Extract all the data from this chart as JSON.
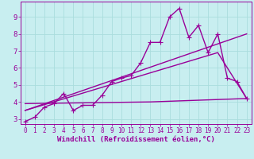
{
  "xlabel": "Windchill (Refroidissement éolien,°C)",
  "bg_color": "#c8eef0",
  "grid_color": "#aadddd",
  "line_color": "#990099",
  "xlim": [
    -0.5,
    23.5
  ],
  "ylim": [
    2.7,
    9.9
  ],
  "yticks": [
    3,
    4,
    5,
    6,
    7,
    8,
    9
  ],
  "xticks": [
    0,
    1,
    2,
    3,
    4,
    5,
    6,
    7,
    8,
    9,
    10,
    11,
    12,
    13,
    14,
    15,
    16,
    17,
    18,
    19,
    20,
    21,
    22,
    23
  ],
  "data_x": [
    0,
    1,
    2,
    3,
    4,
    5,
    6,
    7,
    8,
    9,
    10,
    11,
    12,
    13,
    14,
    15,
    16,
    17,
    18,
    19,
    20,
    21,
    22,
    23
  ],
  "data_y": [
    2.85,
    3.1,
    3.7,
    3.9,
    4.5,
    3.5,
    3.8,
    3.8,
    4.4,
    5.2,
    5.4,
    5.55,
    6.3,
    7.5,
    7.5,
    9.0,
    9.5,
    7.8,
    8.5,
    6.9,
    8.0,
    5.4,
    5.2,
    4.2
  ],
  "trend1_x": [
    0,
    20,
    23
  ],
  "trend1_y": [
    3.5,
    6.9,
    4.2
  ],
  "trend2_x": [
    0,
    23
  ],
  "trend2_y": [
    3.5,
    8.0
  ],
  "trend3_x": [
    0,
    13,
    23
  ],
  "trend3_y": [
    3.9,
    4.0,
    4.2
  ],
  "marker_size": 3,
  "line_width": 1.0,
  "tick_fontsize": 5.5,
  "label_fontsize": 6.5
}
